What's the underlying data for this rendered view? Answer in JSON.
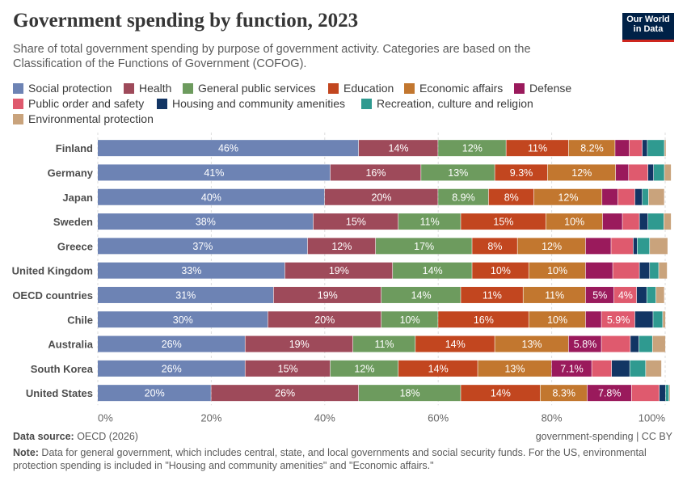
{
  "header": {
    "title": "Government spending by function, 2023",
    "subtitle": "Share of total government spending by purpose of government activity. Categories are based on the Classification of the Functions of Government (COFOG).",
    "logo_line1": "Our World",
    "logo_line2": "in Data"
  },
  "legend": [
    {
      "label": "Social protection",
      "color": "#6d83b4"
    },
    {
      "label": "Health",
      "color": "#9e4a5a"
    },
    {
      "label": "General public services",
      "color": "#6d9b5e"
    },
    {
      "label": "Education",
      "color": "#c2461f"
    },
    {
      "label": "Economic affairs",
      "color": "#c2772f"
    },
    {
      "label": "Defense",
      "color": "#9a1a5c"
    },
    {
      "label": "Public order and safety",
      "color": "#df5a6e"
    },
    {
      "label": "Housing and community amenities",
      "color": "#123564"
    },
    {
      "label": "Recreation, culture and religion",
      "color": "#2f9a90"
    },
    {
      "label": "Environmental protection",
      "color": "#c9a37c"
    }
  ],
  "chart_data": {
    "type": "bar",
    "orientation": "horizontal",
    "stacked": true,
    "xlim": [
      0,
      100
    ],
    "x_ticks": [
      "0%",
      "20%",
      "40%",
      "60%",
      "80%",
      "100%"
    ],
    "categories": [
      "Finland",
      "Germany",
      "Japan",
      "Sweden",
      "Greece",
      "United Kingdom",
      "OECD countries",
      "Chile",
      "Australia",
      "South Korea",
      "United States"
    ],
    "series": [
      {
        "name": "Social protection",
        "values": [
          46,
          41,
          40,
          38,
          37,
          33,
          31,
          30,
          26,
          26,
          20
        ]
      },
      {
        "name": "Health",
        "values": [
          14,
          16,
          20,
          15,
          12,
          19,
          19,
          20,
          19,
          15,
          26
        ]
      },
      {
        "name": "General public services",
        "values": [
          12,
          13,
          8.9,
          11,
          17,
          14,
          14,
          10,
          11,
          12,
          18
        ]
      },
      {
        "name": "Education",
        "values": [
          11,
          9.3,
          8,
          15,
          8,
          10,
          11,
          16,
          14,
          14,
          14
        ]
      },
      {
        "name": "Economic affairs",
        "values": [
          8.2,
          12,
          12,
          10,
          12,
          10,
          11,
          10,
          13,
          13,
          8.3
        ]
      },
      {
        "name": "Defense",
        "values": [
          2.5,
          2.3,
          2.8,
          3.5,
          4.5,
          4.8,
          5,
          2.8,
          5.8,
          7.1,
          7.8
        ]
      },
      {
        "name": "Public order and safety",
        "values": [
          2.3,
          3.4,
          3,
          3,
          3.9,
          4.7,
          4,
          5.9,
          5.1,
          3.5,
          4.9
        ]
      },
      {
        "name": "Housing and community amenities",
        "values": [
          0.9,
          1,
          1.3,
          1.5,
          0.7,
          1.8,
          1.8,
          3.2,
          1.5,
          3.2,
          1.1
        ]
      },
      {
        "name": "Recreation, culture and religion",
        "values": [
          3,
          1.9,
          1.1,
          2.8,
          2.2,
          1.6,
          1.6,
          1.7,
          2.4,
          2.8,
          0.6
        ]
      },
      {
        "name": "Environmental protection",
        "values": [
          0.3,
          1.2,
          2.8,
          1.3,
          3.2,
          1.5,
          1.5,
          0.5,
          2.3,
          2.8,
          0.2
        ]
      }
    ],
    "value_labels": [
      [
        "46%",
        "14%",
        "12%",
        "11%",
        "8.2%",
        "",
        "",
        "",
        "",
        ""
      ],
      [
        "41%",
        "16%",
        "13%",
        "9.3%",
        "12%",
        "",
        "",
        "",
        "",
        ""
      ],
      [
        "40%",
        "20%",
        "8.9%",
        "8%",
        "12%",
        "",
        "",
        "",
        "",
        ""
      ],
      [
        "38%",
        "15%",
        "11%",
        "15%",
        "10%",
        "",
        "",
        "",
        "",
        ""
      ],
      [
        "37%",
        "12%",
        "17%",
        "8%",
        "12%",
        "",
        "",
        "",
        "",
        ""
      ],
      [
        "33%",
        "19%",
        "14%",
        "10%",
        "10%",
        "",
        "",
        "",
        "",
        ""
      ],
      [
        "31%",
        "19%",
        "14%",
        "11%",
        "11%",
        "5%",
        "4%",
        "",
        "",
        ""
      ],
      [
        "30%",
        "20%",
        "10%",
        "16%",
        "10%",
        "",
        "5.9%",
        "",
        "",
        ""
      ],
      [
        "26%",
        "19%",
        "11%",
        "14%",
        "13%",
        "5.8%",
        "",
        "",
        "",
        ""
      ],
      [
        "26%",
        "15%",
        "12%",
        "14%",
        "13%",
        "7.1%",
        "",
        "",
        "",
        ""
      ],
      [
        "20%",
        "26%",
        "18%",
        "14%",
        "8.3%",
        "7.8%",
        "",
        "",
        "",
        ""
      ]
    ]
  },
  "footer": {
    "source_label": "Data source:",
    "source_text": " OECD (2026)",
    "license": "government-spending | CC BY",
    "note_label": "Note:",
    "note_text": " Data for general government, which includes central, state, and local governments and social security funds. For the US, environmental protection spending is included in \"Housing and community amenities\" and \"Economic affairs.\""
  }
}
